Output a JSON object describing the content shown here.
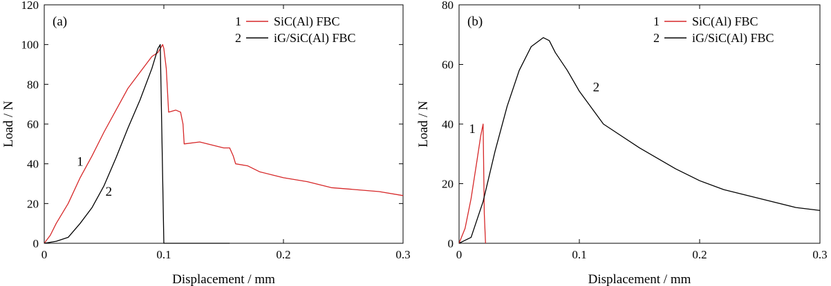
{
  "chart_data": [
    {
      "type": "line",
      "panel_label": "(a)",
      "xlabel": "Displacement / mm",
      "ylabel": "Load / N",
      "xlim": [
        0,
        0.3
      ],
      "ylim": [
        0,
        120
      ],
      "xticks": [
        0,
        0.1,
        0.2,
        0.3
      ],
      "xtick_labels": [
        "0",
        "0.1",
        "0.2",
        "0.3"
      ],
      "yticks": [
        0,
        20,
        40,
        60,
        80,
        100,
        120
      ],
      "ytick_labels": [
        "0",
        "20",
        "40",
        "60",
        "80",
        "100",
        "120"
      ],
      "grid": false,
      "legend_position": "top-right",
      "series": [
        {
          "name": "SiC(Al) FBC",
          "legend_number": "1",
          "color": "#d62728",
          "x": [
            0,
            0.005,
            0.01,
            0.02,
            0.03,
            0.04,
            0.05,
            0.06,
            0.07,
            0.08,
            0.09,
            0.095,
            0.099,
            0.1,
            0.102,
            0.104,
            0.11,
            0.114,
            0.116,
            0.117,
            0.13,
            0.15,
            0.155,
            0.158,
            0.16,
            0.17,
            0.18,
            0.2,
            0.22,
            0.24,
            0.26,
            0.28,
            0.3
          ],
          "y": [
            0,
            4,
            10,
            20,
            33,
            44,
            56,
            67,
            78,
            86,
            94,
            96,
            100,
            98,
            88,
            66,
            67,
            66,
            60,
            50,
            51,
            48,
            48,
            44,
            40,
            39,
            36,
            33,
            31,
            28,
            27,
            26,
            24
          ],
          "annotation": {
            "text": "1",
            "x": 0.03,
            "y": 39
          }
        },
        {
          "name": "iG/SiC(Al) FBC",
          "legend_number": "2",
          "color": "#000000",
          "x": [
            0,
            0.01,
            0.02,
            0.03,
            0.04,
            0.05,
            0.06,
            0.07,
            0.08,
            0.09,
            0.095,
            0.097,
            0.1,
            0.12,
            0.15,
            0.155
          ],
          "y": [
            0,
            1,
            3,
            10,
            18,
            29,
            43,
            58,
            72,
            88,
            98,
            100,
            0,
            0,
            0,
            0
          ],
          "annotation": {
            "text": "2",
            "x": 0.054,
            "y": 24
          }
        }
      ]
    },
    {
      "type": "line",
      "panel_label": "(b)",
      "xlabel": "Displacement / mm",
      "ylabel": "Load / N",
      "xlim": [
        0,
        0.3
      ],
      "ylim": [
        0,
        80
      ],
      "xticks": [
        0,
        0.1,
        0.2,
        0.3
      ],
      "xtick_labels": [
        "0",
        "0.1",
        "0.2",
        "0.3"
      ],
      "yticks": [
        0,
        20,
        40,
        60,
        80
      ],
      "ytick_labels": [
        "0",
        "20",
        "40",
        "60",
        "80"
      ],
      "grid": false,
      "legend_position": "top-right",
      "series": [
        {
          "name": "SiC(Al) FBC",
          "legend_number": "1",
          "color": "#d62728",
          "x": [
            0,
            0.005,
            0.01,
            0.015,
            0.018,
            0.02,
            0.021,
            0.022
          ],
          "y": [
            0,
            5,
            15,
            28,
            36,
            40,
            10,
            0
          ],
          "annotation": {
            "text": "1",
            "x": 0.011,
            "y": 37
          }
        },
        {
          "name": "iG/SiC(Al) FBC",
          "legend_number": "2",
          "color": "#000000",
          "x": [
            0,
            0.005,
            0.01,
            0.02,
            0.03,
            0.04,
            0.05,
            0.06,
            0.07,
            0.075,
            0.08,
            0.09,
            0.1,
            0.12,
            0.15,
            0.18,
            0.2,
            0.22,
            0.25,
            0.28,
            0.3
          ],
          "y": [
            0,
            1,
            2,
            14,
            31,
            46,
            58,
            66,
            69,
            68,
            64,
            58,
            51,
            40,
            32,
            25,
            21,
            18,
            15,
            12,
            11
          ],
          "annotation": {
            "text": "2",
            "x": 0.114,
            "y": 51
          }
        }
      ]
    }
  ]
}
